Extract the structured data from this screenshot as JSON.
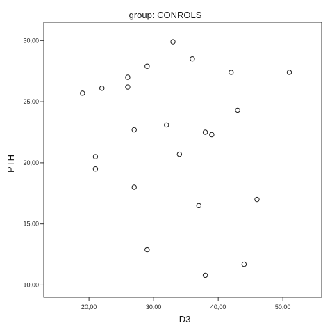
{
  "chart_data": {
    "type": "scatter",
    "title": "group: CONROLS",
    "xlabel": "D3",
    "ylabel": "PTH",
    "xlim": [
      13,
      56
    ],
    "ylim": [
      9,
      31.5
    ],
    "xticks": [
      20,
      30,
      40,
      50
    ],
    "xtick_labels": [
      "20,00",
      "30,00",
      "40,00",
      "50,00"
    ],
    "yticks": [
      10,
      15,
      20,
      25,
      30
    ],
    "ytick_labels": [
      "10,00",
      "15,00",
      "20,00",
      "25,00",
      "30,00"
    ],
    "grid": false,
    "marker": "open-circle",
    "marker_color": "#1a1a1a",
    "points": [
      {
        "x": 19,
        "y": 25.7
      },
      {
        "x": 22,
        "y": 26.1
      },
      {
        "x": 26,
        "y": 27.0
      },
      {
        "x": 26,
        "y": 26.2
      },
      {
        "x": 29,
        "y": 27.9
      },
      {
        "x": 33,
        "y": 29.9
      },
      {
        "x": 36,
        "y": 28.5
      },
      {
        "x": 42,
        "y": 27.4
      },
      {
        "x": 51,
        "y": 27.4
      },
      {
        "x": 43,
        "y": 24.3
      },
      {
        "x": 32,
        "y": 23.1
      },
      {
        "x": 27,
        "y": 22.7
      },
      {
        "x": 38,
        "y": 22.5
      },
      {
        "x": 39,
        "y": 22.3
      },
      {
        "x": 34,
        "y": 20.7
      },
      {
        "x": 21,
        "y": 20.5
      },
      {
        "x": 21,
        "y": 19.5
      },
      {
        "x": 27,
        "y": 18.0
      },
      {
        "x": 46,
        "y": 17.0
      },
      {
        "x": 37,
        "y": 16.5
      },
      {
        "x": 29,
        "y": 12.9
      },
      {
        "x": 44,
        "y": 11.7
      },
      {
        "x": 38,
        "y": 10.8
      }
    ]
  }
}
